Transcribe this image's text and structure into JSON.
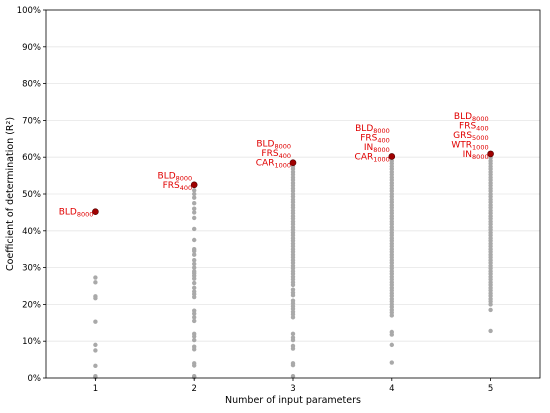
{
  "chart_data": {
    "type": "scatter",
    "xlabel": "Number of input parameters",
    "ylabel": "Coefficient of determination (R²)",
    "x_categories": [
      "1",
      "2",
      "3",
      "4",
      "5"
    ],
    "ylim": [
      0,
      100
    ],
    "y_ticks": [
      "0%",
      "10%",
      "20%",
      "30%",
      "40%",
      "50%",
      "60%",
      "70%",
      "80%",
      "90%",
      "100%"
    ],
    "grid": "horizontal",
    "colors": {
      "best": "#a00000",
      "others": "#a9a9a9",
      "annotation": "#e00000"
    },
    "series": [
      {
        "values": [
          {
            "x": 1,
            "y": [
              0.2,
              0.5,
              3.3,
              7.5,
              9.0,
              15.3,
              21.7,
              22.2,
              26.0,
              27.3
            ]
          },
          {
            "x": 2,
            "y": [
              0.2,
              0.5,
              3.4,
              4.0,
              7.8,
              8.5,
              10.3,
              11.3,
              12.0,
              15.5,
              16.5,
              17.5,
              18.3,
              22.0,
              22.8,
              23.5,
              24.5,
              25.8,
              27.0,
              27.8,
              28.5,
              29.0,
              30.0,
              31.0,
              32.0,
              33.5,
              34.5,
              35.0,
              37.5,
              40.5,
              43.5,
              45.0,
              46.0,
              47.5,
              49.0,
              50.0,
              51.0
            ]
          },
          {
            "x": 3,
            "y": [
              0.5,
              3.5,
              4.0,
              8.0,
              8.7,
              10.3,
              11.0,
              12.0,
              16.5,
              17.3,
              18.0,
              18.8,
              19.5,
              20.3,
              21.0,
              22.5,
              23.2,
              24.0,
              25.3,
              26.0,
              26.8,
              27.5,
              28.3,
              29.0,
              29.8,
              30.5,
              31.3,
              32.0,
              32.8,
              33.5,
              34.3,
              35.0,
              35.8,
              36.5,
              37.3,
              38.0,
              38.8,
              39.5,
              40.3,
              41.0,
              41.8,
              42.5,
              43.3,
              44.0,
              44.8,
              45.5,
              46.3,
              47.0,
              47.8,
              48.5,
              49.3,
              50.0,
              50.8,
              51.5,
              52.3,
              53.0,
              53.8,
              54.5,
              55.3,
              56.0,
              56.8,
              57.5
            ]
          },
          {
            "x": 4,
            "y": [
              4.2,
              9.0,
              11.8,
              12.5,
              17.0,
              17.8,
              18.5,
              19.3,
              20.0,
              20.8,
              21.5,
              22.3,
              23.0,
              23.8,
              24.5,
              25.3,
              26.0,
              26.8,
              27.5,
              28.3,
              29.0,
              29.8,
              30.5,
              31.3,
              32.0,
              32.8,
              33.5,
              34.3,
              35.0,
              35.8,
              36.5,
              37.3,
              38.0,
              38.8,
              39.5,
              40.3,
              41.0,
              41.8,
              42.5,
              43.3,
              44.0,
              44.8,
              45.5,
              46.3,
              47.0,
              47.8,
              48.5,
              49.3,
              50.0,
              50.8,
              51.5,
              52.3,
              53.0,
              53.8,
              54.5,
              55.3,
              56.0,
              56.8,
              57.5,
              58.3,
              59.0
            ]
          },
          {
            "x": 5,
            "y": [
              12.8,
              18.5,
              20.0,
              20.8,
              21.5,
              22.3,
              23.0,
              23.8,
              24.5,
              25.3,
              26.0,
              26.8,
              27.5,
              28.3,
              29.0,
              29.8,
              30.5,
              31.3,
              32.0,
              32.8,
              33.5,
              34.3,
              35.0,
              35.8,
              36.5,
              37.3,
              38.0,
              38.8,
              39.5,
              40.3,
              41.0,
              41.8,
              42.5,
              43.3,
              44.0,
              44.8,
              45.5,
              46.3,
              47.0,
              47.8,
              48.5,
              49.3,
              50.0,
              50.8,
              51.5,
              52.3,
              53.0,
              53.8,
              54.5,
              55.3,
              56.0,
              56.8,
              57.5,
              58.3,
              59.0,
              59.8
            ]
          }
        ]
      }
    ],
    "best": [
      {
        "x": 1,
        "y": 45.2,
        "labels": [
          [
            "BLD",
            "8000"
          ]
        ]
      },
      {
        "x": 2,
        "y": 52.5,
        "labels": [
          [
            "BLD",
            "8000"
          ],
          [
            "FRS",
            "400"
          ]
        ]
      },
      {
        "x": 3,
        "y": 58.5,
        "labels": [
          [
            "BLD",
            "8000"
          ],
          [
            "FRS",
            "400"
          ],
          [
            "CAR",
            "1000"
          ]
        ]
      },
      {
        "x": 4,
        "y": 60.2,
        "labels": [
          [
            "BLD",
            "8000"
          ],
          [
            "FRS",
            "400"
          ],
          [
            "IN",
            "8000"
          ],
          [
            "CAR",
            "1000"
          ]
        ]
      },
      {
        "x": 5,
        "y": 60.9,
        "labels": [
          [
            "BLD",
            "8000"
          ],
          [
            "FRS",
            "400"
          ],
          [
            "GRS",
            "5000"
          ],
          [
            "WTR",
            "1000"
          ],
          [
            "IN",
            "8000"
          ]
        ]
      }
    ]
  }
}
